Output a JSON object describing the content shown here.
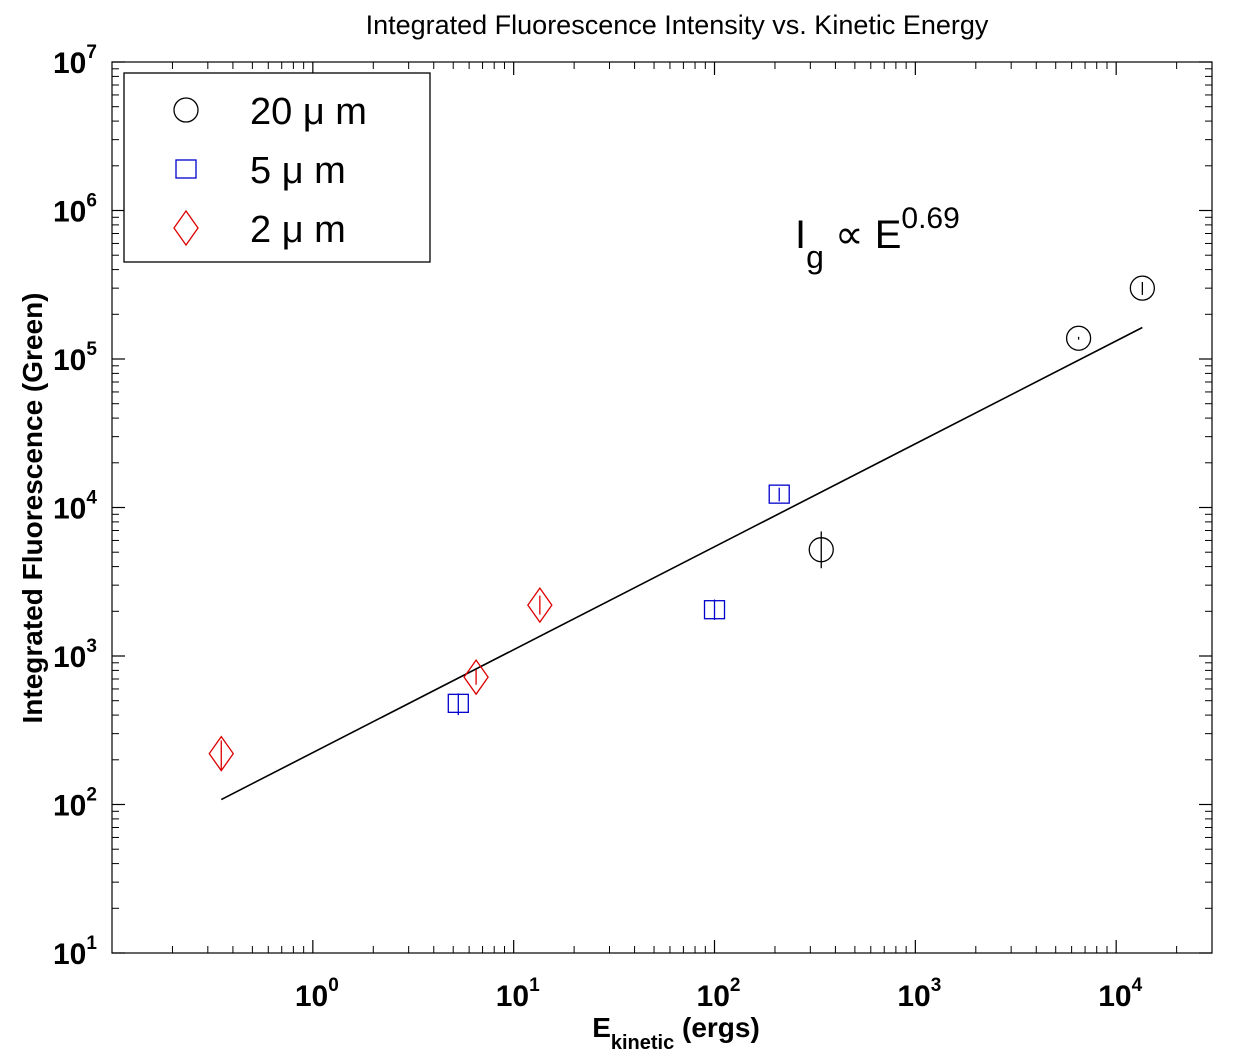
{
  "chart_data": {
    "type": "scatter",
    "title": "Integrated Fluorescence Intensity vs. Kinetic Energy",
    "xlabel": {
      "main": "E",
      "sub": "kinetic",
      "rest": " (ergs)"
    },
    "ylabel": "Integrated Fluorescence (Green)",
    "xscale": "log",
    "yscale": "log",
    "xlim": [
      0.1,
      30000
    ],
    "ylim": [
      10,
      10000000
    ],
    "xticks": [
      {
        "value": 1,
        "base": "10",
        "exp": "0"
      },
      {
        "value": 10,
        "base": "10",
        "exp": "1"
      },
      {
        "value": 100,
        "base": "10",
        "exp": "2"
      },
      {
        "value": 1000,
        "base": "10",
        "exp": "3"
      },
      {
        "value": 10000,
        "base": "10",
        "exp": "4"
      }
    ],
    "yticks": [
      {
        "value": 10,
        "base": "10",
        "exp": "1"
      },
      {
        "value": 100,
        "base": "10",
        "exp": "2"
      },
      {
        "value": 1000,
        "base": "10",
        "exp": "3"
      },
      {
        "value": 10000,
        "base": "10",
        "exp": "4"
      },
      {
        "value": 100000,
        "base": "10",
        "exp": "5"
      },
      {
        "value": 1000000,
        "base": "10",
        "exp": "6"
      },
      {
        "value": 10000000,
        "base": "10",
        "exp": "7"
      }
    ],
    "legend_position": "top-left",
    "series": [
      {
        "name": "20 μ m",
        "marker": "circle",
        "color": "#000000",
        "points": [
          {
            "x": 340,
            "y": 5200,
            "ylow": 3900,
            "yhigh": 6900
          },
          {
            "x": 6500,
            "y": 138000,
            "ylow": 135000,
            "yhigh": 141000
          },
          {
            "x": 13500,
            "y": 300000,
            "ylow": 270000,
            "yhigh": 330000
          }
        ]
      },
      {
        "name": "5 μ m",
        "marker": "square",
        "color": "#0000cc",
        "points": [
          {
            "x": 5.3,
            "y": 480,
            "ylow": 400,
            "yhigh": 560
          },
          {
            "x": 100,
            "y": 2050,
            "ylow": 1750,
            "yhigh": 2400
          },
          {
            "x": 210,
            "y": 12300,
            "ylow": 11000,
            "yhigh": 13600
          }
        ]
      },
      {
        "name": "2 μ m",
        "marker": "diamond",
        "color": "#dd0000",
        "points": [
          {
            "x": 0.35,
            "y": 220,
            "ylow": 170,
            "yhigh": 270
          },
          {
            "x": 6.5,
            "y": 720,
            "ylow": 640,
            "yhigh": 810
          },
          {
            "x": 13.5,
            "y": 2200,
            "ylow": 1900,
            "yhigh": 2550
          }
        ]
      }
    ],
    "fit_line": {
      "x": [
        0.35,
        13500
      ],
      "y": [
        108,
        163000
      ],
      "color": "#000000"
    },
    "annotation": {
      "base": "I",
      "sub": "g",
      "symbol": " ∝ E",
      "exp": "0.69"
    }
  }
}
